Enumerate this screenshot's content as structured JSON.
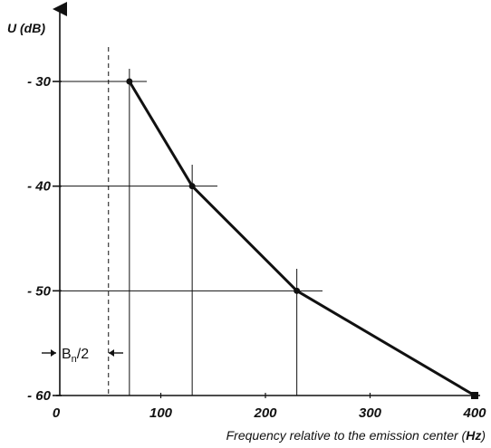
{
  "chart_data": {
    "type": "line",
    "ylabel": "U (dB)",
    "xlabel_prefix": "Frequency relative to the emission center (",
    "xlabel_unit": "Hz",
    "xlabel_suffix": ")",
    "xlim": [
      0,
      400
    ],
    "ylim": [
      -60,
      -24
    ],
    "x_ticks": [
      {
        "value": 0,
        "label": "0"
      },
      {
        "value": 100,
        "label": "100"
      },
      {
        "value": 200,
        "label": "200"
      },
      {
        "value": 300,
        "label": "300"
      },
      {
        "value": 400,
        "label": "400"
      }
    ],
    "y_ticks": [
      {
        "value": -30,
        "label": "- 30"
      },
      {
        "value": -40,
        "label": "- 40"
      },
      {
        "value": -50,
        "label": "- 50"
      },
      {
        "value": -60,
        "label": "- 60"
      }
    ],
    "series": [
      {
        "x": [
          70,
          130,
          230,
          400
        ],
        "y": [
          -30,
          -40,
          -50,
          -60
        ]
      }
    ],
    "dashed_line_x": 50,
    "bandwidth_label_main": "B",
    "bandwidth_label_sub": "n",
    "bandwidth_label_tail": "/2",
    "grid": false
  }
}
